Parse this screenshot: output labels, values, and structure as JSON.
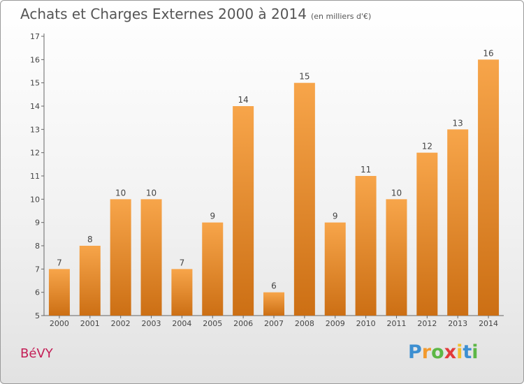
{
  "header": {
    "title": "Achats et Charges Externes 2000 à 2014",
    "subtitle": "(en milliers d'€)"
  },
  "footer": {
    "commune": "BéVY",
    "logo_letters": [
      "P",
      "r",
      "o",
      "x",
      "i",
      "t",
      "i"
    ],
    "logo_colors": [
      "#3d8fd1",
      "#f29a2e",
      "#5db746",
      "#e23a3a",
      "#f2c02e",
      "#3d8fd1",
      "#5db746"
    ]
  },
  "chart_data": {
    "type": "bar",
    "title": "Achats et Charges Externes 2000 à 2014",
    "subtitle": "(en milliers d'€)",
    "xlabel": "",
    "ylabel": "",
    "categories": [
      "2000",
      "2001",
      "2002",
      "2003",
      "2004",
      "2005",
      "2006",
      "2007",
      "2008",
      "2009",
      "2010",
      "2011",
      "2012",
      "2013",
      "2014"
    ],
    "values": [
      7,
      8,
      10,
      10,
      7,
      9,
      14,
      6,
      15,
      9,
      11,
      10,
      12,
      13,
      16
    ],
    "ylim": [
      5,
      17
    ],
    "yticks": [
      5,
      6,
      7,
      8,
      9,
      10,
      11,
      12,
      13,
      14,
      15,
      16,
      17
    ],
    "grid": false,
    "data_labels": true,
    "bar_color_top": "#f7a54a",
    "bar_color_bottom": "#cc6f14"
  }
}
